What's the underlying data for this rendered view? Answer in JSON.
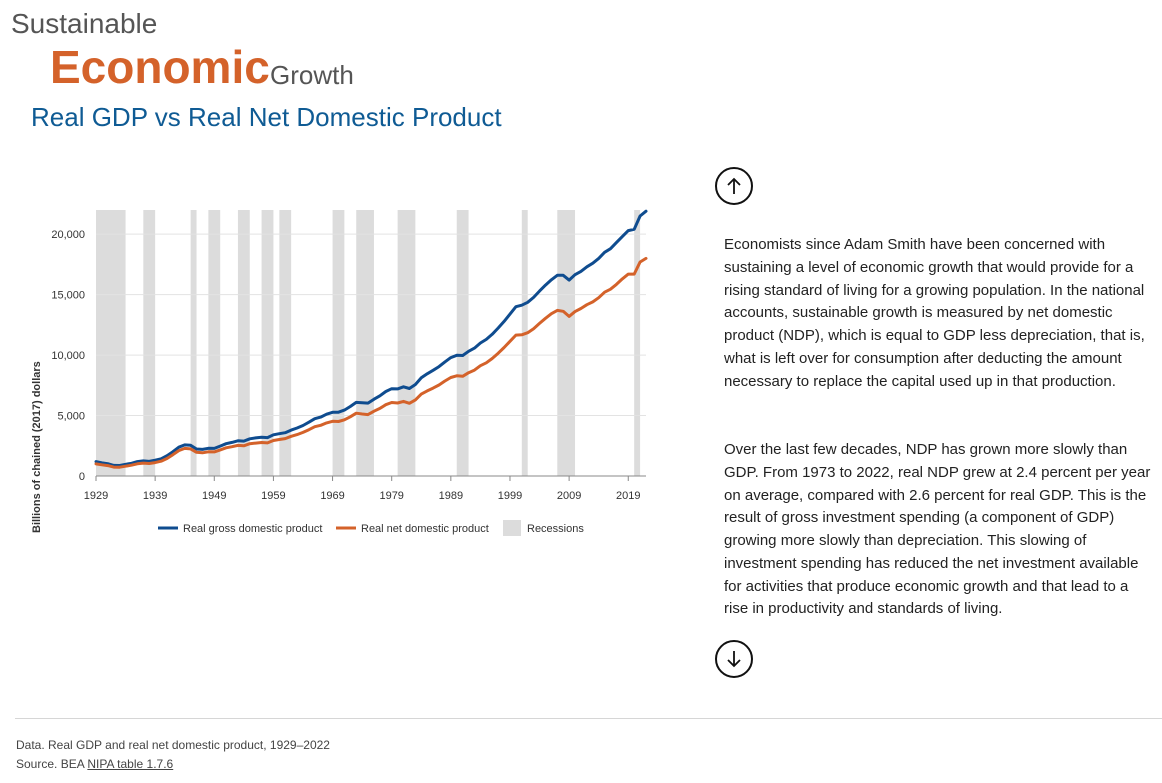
{
  "brand": {
    "small": "Sustainable",
    "main": "Economic",
    "sub": "Growth"
  },
  "page_title": "Real GDP vs Real Net Domestic Product",
  "nav": {
    "up_icon": "arrow-up-icon",
    "down_icon": "arrow-down-icon"
  },
  "text": {
    "para1": "Economists since Adam Smith have been concerned with sustaining a level of economic growth that would provide for a rising standard of living for a growing population. In the national accounts, sustainable growth is measured by net domestic product (NDP), which is equal to GDP less depreciation, that is, what is left over for consumption after deducting the amount necessary to replace the capital used up in that production.",
    "para2": "Over the last few decades, NDP has grown more slowly than GDP. From 1973 to 2022, real NDP grew at 2.4 percent per year on average, compared with 2.6 percent for real GDP. This is the result of gross investment spending (a component of GDP) growing more slowly than depreciation. This slowing of investment spending has reduced the net investment available for activities that produce economic growth and that lead to a rise in productivity and standards of living."
  },
  "footer": {
    "data_line": "Data. Real GDP and real net domestic product, 1929–2022",
    "source_prefix": "Source. BEA ",
    "source_link": "NIPA table 1.7.6"
  },
  "colors": {
    "gdp": "#0f4c8f",
    "ndp": "#d4622a",
    "recession": "#dcdcdc",
    "grid": "#e3e3e3"
  },
  "chart_data": {
    "type": "line",
    "xlabel": "",
    "ylabel": "Billions of chained (2017) dollars",
    "xlim": [
      1929,
      2022
    ],
    "ylim": [
      0,
      22000
    ],
    "x_ticks": [
      1929,
      1939,
      1949,
      1959,
      1969,
      1979,
      1989,
      1999,
      2009,
      2019
    ],
    "y_ticks": [
      0,
      5000,
      10000,
      15000,
      20000
    ],
    "y_tick_labels": [
      "0",
      "5,000",
      "10,000",
      "15,000",
      "20,000"
    ],
    "legend_position": "bottom",
    "recessions": [
      [
        1929,
        1934
      ],
      [
        1937,
        1939
      ],
      [
        1945,
        1946
      ],
      [
        1948,
        1950
      ],
      [
        1953,
        1955
      ],
      [
        1957,
        1959
      ],
      [
        1960,
        1962
      ],
      [
        1969,
        1971
      ],
      [
        1973,
        1976
      ],
      [
        1980,
        1983
      ],
      [
        1990,
        1992
      ],
      [
        2001,
        2002
      ],
      [
        2007,
        2010
      ],
      [
        2020,
        2021
      ]
    ],
    "series": [
      {
        "name": "Real gross domestic product",
        "points": [
          [
            1929,
            1190
          ],
          [
            1930,
            1090
          ],
          [
            1931,
            1020
          ],
          [
            1932,
            880
          ],
          [
            1933,
            870
          ],
          [
            1934,
            965
          ],
          [
            1935,
            1050
          ],
          [
            1936,
            1190
          ],
          [
            1937,
            1250
          ],
          [
            1938,
            1210
          ],
          [
            1939,
            1310
          ],
          [
            1940,
            1420
          ],
          [
            1941,
            1680
          ],
          [
            1942,
            2010
          ],
          [
            1943,
            2380
          ],
          [
            1944,
            2570
          ],
          [
            1945,
            2540
          ],
          [
            1946,
            2230
          ],
          [
            1947,
            2200
          ],
          [
            1948,
            2290
          ],
          [
            1949,
            2280
          ],
          [
            1950,
            2470
          ],
          [
            1951,
            2670
          ],
          [
            1952,
            2780
          ],
          [
            1953,
            2910
          ],
          [
            1954,
            2890
          ],
          [
            1955,
            3080
          ],
          [
            1956,
            3150
          ],
          [
            1957,
            3200
          ],
          [
            1958,
            3180
          ],
          [
            1959,
            3410
          ],
          [
            1960,
            3500
          ],
          [
            1961,
            3580
          ],
          [
            1962,
            3800
          ],
          [
            1963,
            3970
          ],
          [
            1964,
            4180
          ],
          [
            1965,
            4450
          ],
          [
            1966,
            4740
          ],
          [
            1967,
            4870
          ],
          [
            1968,
            5110
          ],
          [
            1969,
            5270
          ],
          [
            1970,
            5280
          ],
          [
            1971,
            5450
          ],
          [
            1972,
            5750
          ],
          [
            1973,
            6090
          ],
          [
            1974,
            6050
          ],
          [
            1975,
            6030
          ],
          [
            1976,
            6350
          ],
          [
            1977,
            6630
          ],
          [
            1978,
            6990
          ],
          [
            1979,
            7220
          ],
          [
            1980,
            7200
          ],
          [
            1981,
            7380
          ],
          [
            1982,
            7240
          ],
          [
            1983,
            7570
          ],
          [
            1984,
            8120
          ],
          [
            1985,
            8450
          ],
          [
            1986,
            8740
          ],
          [
            1987,
            9050
          ],
          [
            1988,
            9440
          ],
          [
            1989,
            9790
          ],
          [
            1990,
            9980
          ],
          [
            1991,
            9970
          ],
          [
            1992,
            10310
          ],
          [
            1993,
            10580
          ],
          [
            1994,
            11000
          ],
          [
            1995,
            11300
          ],
          [
            1996,
            11720
          ],
          [
            1997,
            12240
          ],
          [
            1998,
            12790
          ],
          [
            1999,
            13390
          ],
          [
            2000,
            14000
          ],
          [
            2001,
            14130
          ],
          [
            2002,
            14370
          ],
          [
            2003,
            14770
          ],
          [
            2004,
            15290
          ],
          [
            2005,
            15790
          ],
          [
            2006,
            16230
          ],
          [
            2007,
            16600
          ],
          [
            2008,
            16600
          ],
          [
            2009,
            16200
          ],
          [
            2010,
            16650
          ],
          [
            2011,
            16920
          ],
          [
            2012,
            17300
          ],
          [
            2013,
            17600
          ],
          [
            2014,
            18000
          ],
          [
            2015,
            18500
          ],
          [
            2016,
            18800
          ],
          [
            2017,
            19300
          ],
          [
            2018,
            19800
          ],
          [
            2019,
            20300
          ],
          [
            2020,
            20400
          ],
          [
            2021,
            21500
          ],
          [
            2022,
            21900
          ]
        ]
      },
      {
        "name": "Real net domestic product",
        "points": [
          [
            1929,
            1000
          ],
          [
            1930,
            930
          ],
          [
            1931,
            860
          ],
          [
            1932,
            740
          ],
          [
            1933,
            730
          ],
          [
            1934,
            810
          ],
          [
            1935,
            890
          ],
          [
            1936,
            1010
          ],
          [
            1937,
            1070
          ],
          [
            1938,
            1030
          ],
          [
            1939,
            1110
          ],
          [
            1940,
            1220
          ],
          [
            1941,
            1450
          ],
          [
            1942,
            1760
          ],
          [
            1943,
            2100
          ],
          [
            1944,
            2280
          ],
          [
            1945,
            2240
          ],
          [
            1946,
            1960
          ],
          [
            1947,
            1920
          ],
          [
            1948,
            2000
          ],
          [
            1949,
            1990
          ],
          [
            1950,
            2160
          ],
          [
            1951,
            2330
          ],
          [
            1952,
            2420
          ],
          [
            1953,
            2530
          ],
          [
            1954,
            2500
          ],
          [
            1955,
            2670
          ],
          [
            1956,
            2720
          ],
          [
            1957,
            2770
          ],
          [
            1958,
            2740
          ],
          [
            1959,
            2940
          ],
          [
            1960,
            3020
          ],
          [
            1961,
            3090
          ],
          [
            1962,
            3280
          ],
          [
            1963,
            3420
          ],
          [
            1964,
            3610
          ],
          [
            1965,
            3830
          ],
          [
            1966,
            4080
          ],
          [
            1967,
            4190
          ],
          [
            1968,
            4390
          ],
          [
            1969,
            4520
          ],
          [
            1970,
            4510
          ],
          [
            1971,
            4650
          ],
          [
            1972,
            4900
          ],
          [
            1973,
            5190
          ],
          [
            1974,
            5130
          ],
          [
            1975,
            5080
          ],
          [
            1976,
            5360
          ],
          [
            1977,
            5590
          ],
          [
            1978,
            5900
          ],
          [
            1979,
            6080
          ],
          [
            1980,
            6040
          ],
          [
            1981,
            6170
          ],
          [
            1982,
            6010
          ],
          [
            1983,
            6290
          ],
          [
            1984,
            6770
          ],
          [
            1985,
            7040
          ],
          [
            1986,
            7270
          ],
          [
            1987,
            7530
          ],
          [
            1988,
            7860
          ],
          [
            1989,
            8150
          ],
          [
            1990,
            8290
          ],
          [
            1991,
            8250
          ],
          [
            1992,
            8540
          ],
          [
            1993,
            8760
          ],
          [
            1994,
            9120
          ],
          [
            1995,
            9360
          ],
          [
            1996,
            9720
          ],
          [
            1997,
            10160
          ],
          [
            1998,
            10630
          ],
          [
            1999,
            11140
          ],
          [
            2000,
            11650
          ],
          [
            2001,
            11680
          ],
          [
            2002,
            11850
          ],
          [
            2003,
            12180
          ],
          [
            2004,
            12620
          ],
          [
            2005,
            13040
          ],
          [
            2006,
            13420
          ],
          [
            2007,
            13700
          ],
          [
            2008,
            13620
          ],
          [
            2009,
            13200
          ],
          [
            2010,
            13600
          ],
          [
            2011,
            13850
          ],
          [
            2012,
            14170
          ],
          [
            2013,
            14400
          ],
          [
            2014,
            14750
          ],
          [
            2015,
            15200
          ],
          [
            2016,
            15450
          ],
          [
            2017,
            15850
          ],
          [
            2018,
            16300
          ],
          [
            2019,
            16700
          ],
          [
            2020,
            16700
          ],
          [
            2021,
            17700
          ],
          [
            2022,
            18000
          ]
        ]
      }
    ],
    "legend": [
      {
        "label": "Real gross domestic product",
        "kind": "line",
        "color": "#0f4c8f"
      },
      {
        "label": "Real net domestic product",
        "kind": "line",
        "color": "#d4622a"
      },
      {
        "label": "Recessions",
        "kind": "box",
        "color": "#dcdcdc"
      }
    ]
  }
}
